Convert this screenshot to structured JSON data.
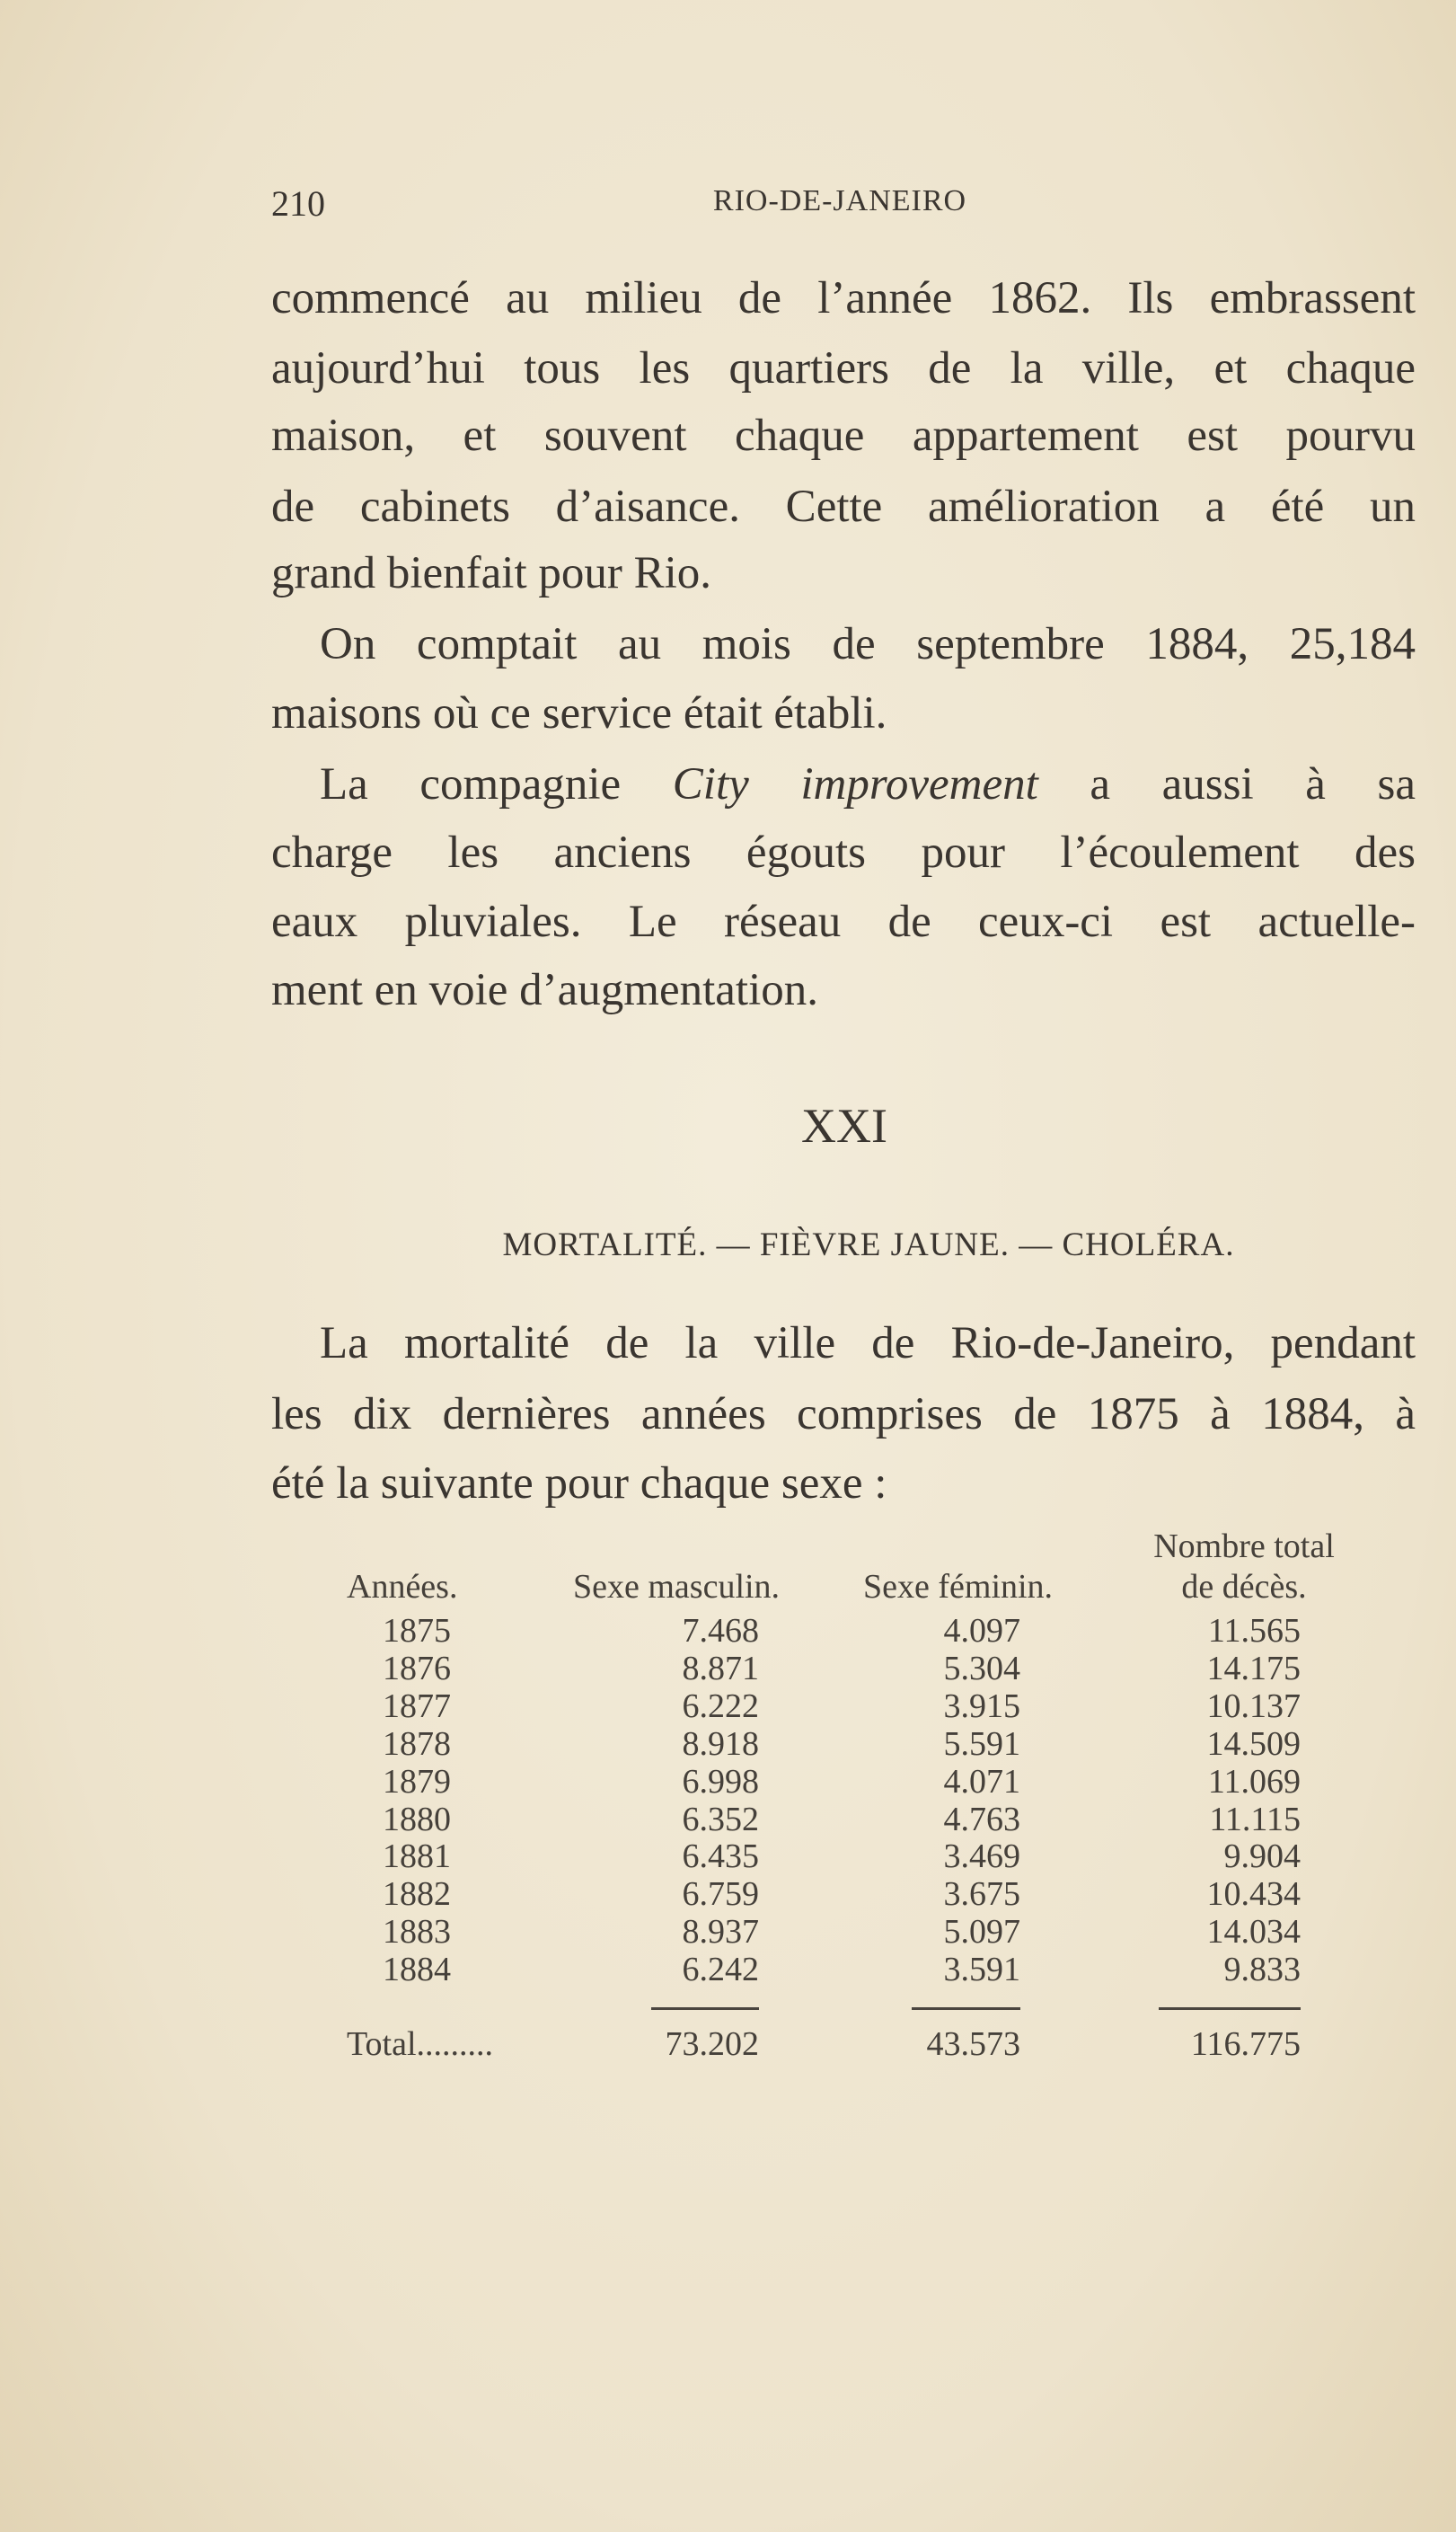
{
  "header": {
    "page_number": "210",
    "running_title": "RIO-DE-JANEIRO"
  },
  "paragraphs": [
    {
      "lines": [
        "commencé au milieu de l’année 1862. Ils embrassent",
        "aujourd’hui tous les quartiers de la ville, et chaque",
        "maison, et souvent chaque appartement est pourvu",
        "de cabinets d’aisance. Cette amélioration a été un",
        "grand bienfait pour Rio."
      ]
    },
    {
      "lines": [
        "On comptait au mois de septembre 1884, 25,184",
        "maisons où ce service était établi."
      ]
    },
    {
      "line1_before": "La compagnie ",
      "line1_italic": "City improvement",
      "line1_after": " a aussi à sa",
      "lines": [
        "charge les anciens égouts pour l’écoulement des",
        "eaux pluviales. Le réseau de ceux-ci est actuelle-",
        "ment en voie d’augmentation."
      ]
    }
  ],
  "chapter": {
    "number": "XXI",
    "subtitle": "MORTALITÉ. — FIÈVRE JAUNE. — CHOLÉRA."
  },
  "intro": {
    "lines": [
      "La mortalité de la ville de Rio-de-Janeiro, pendant",
      "les dix dernières années comprises de 1875 à 1884, à",
      "été la suivante pour chaque sexe :"
    ]
  },
  "table": {
    "headers": {
      "years": "Années.",
      "male": "Sexe masculin.",
      "female": "Sexe féminin.",
      "total_line1": "Nombre total",
      "total_line2": "de décès."
    },
    "rows": [
      {
        "year": "1875",
        "male": "7.468",
        "female": "4.097",
        "total": "11.565"
      },
      {
        "year": "1876",
        "male": "8.871",
        "female": "5.304",
        "total": "14.175"
      },
      {
        "year": "1877",
        "male": "6.222",
        "female": "3.915",
        "total": "10.137"
      },
      {
        "year": "1878",
        "male": "8.918",
        "female": "5.591",
        "total": "14.509"
      },
      {
        "year": "1879",
        "male": "6.998",
        "female": "4.071",
        "total": "11.069"
      },
      {
        "year": "1880",
        "male": "6.352",
        "female": "4.763",
        "total": "11.115"
      },
      {
        "year": "1881",
        "male": "6.435",
        "female": "3.469",
        "total": "9.904"
      },
      {
        "year": "1882",
        "male": "6.759",
        "female": "3.675",
        "total": "10.434"
      },
      {
        "year": "1883",
        "male": "8.937",
        "female": "5.097",
        "total": "14.034"
      },
      {
        "year": "1884",
        "male": "6.242",
        "female": "3.591",
        "total": "9.833"
      }
    ],
    "total_row": {
      "label": "Total.........",
      "male": "73.202",
      "female": "43.573",
      "total": "116.775"
    }
  }
}
